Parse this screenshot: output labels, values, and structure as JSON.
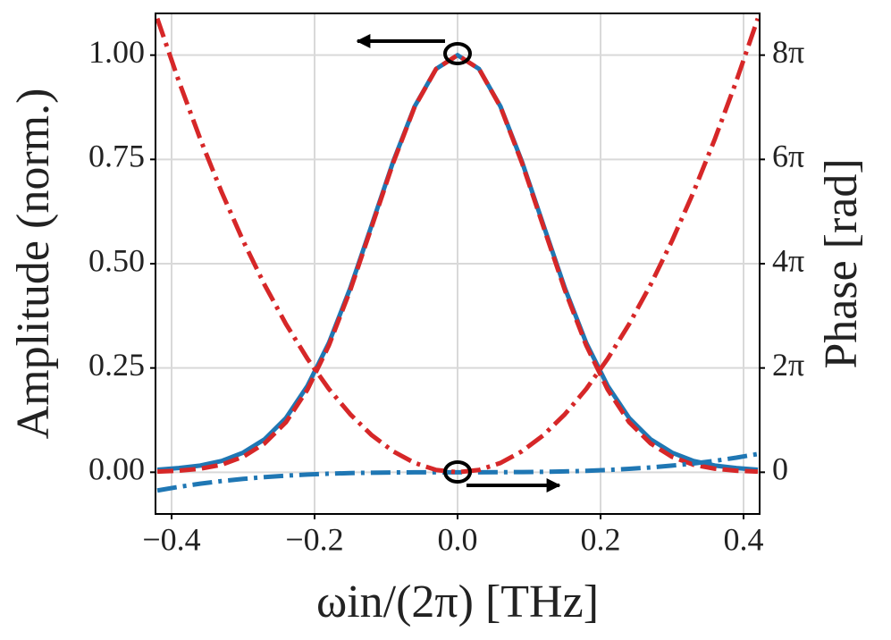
{
  "chart_data": {
    "type": "line",
    "xlabel": "ωin/(2π) [THz]",
    "ylabel": "Amplitude (norm.)",
    "y2label": "Phase [rad]",
    "x": [
      -0.42,
      -0.39,
      -0.36,
      -0.33,
      -0.3,
      -0.27,
      -0.24,
      -0.21,
      -0.18,
      -0.15,
      -0.12,
      -0.09,
      -0.06,
      -0.03,
      0,
      0.03,
      0.06,
      0.09,
      0.12,
      0.15,
      0.18,
      0.21,
      0.24,
      0.27,
      0.3,
      0.33,
      0.36,
      0.39,
      0.42
    ],
    "series": [
      {
        "color": "#1f77b4",
        "linestyle": "solid",
        "axis": "y",
        "values": [
          0.006,
          0.01,
          0.016,
          0.027,
          0.047,
          0.079,
          0.13,
          0.207,
          0.31,
          0.442,
          0.593,
          0.745,
          0.877,
          0.967,
          1,
          0.967,
          0.877,
          0.745,
          0.593,
          0.442,
          0.31,
          0.207,
          0.13,
          0.079,
          0.047,
          0.027,
          0.016,
          0.01,
          0.006
        ]
      },
      {
        "color": "#d62728",
        "linestyle": "dashed",
        "axis": "y",
        "values": [
          0.0015,
          0.0037,
          0.0085,
          0.018,
          0.037,
          0.069,
          0.12,
          0.198,
          0.304,
          0.437,
          0.589,
          0.742,
          0.876,
          0.967,
          1,
          0.967,
          0.876,
          0.742,
          0.589,
          0.437,
          0.304,
          0.198,
          0.12,
          0.069,
          0.037,
          0.018,
          0.0085,
          0.0037,
          0.0015
        ]
      },
      {
        "color": "#1f77b4",
        "linestyle": "dashdot",
        "axis": "y2",
        "values": [
          -1.1,
          -0.88,
          -0.69,
          -0.53,
          -0.4,
          -0.291,
          -0.205,
          -0.137,
          -0.086,
          -0.05,
          -0.026,
          -0.011,
          -0.003,
          0,
          0,
          0,
          0.003,
          0.011,
          0.026,
          0.05,
          0.086,
          0.137,
          0.205,
          0.291,
          0.4,
          0.53,
          0.69,
          0.88,
          1.1
        ]
      },
      {
        "color": "#d62728",
        "linestyle": "dashdot",
        "axis": "y2",
        "values": [
          27.34,
          23.58,
          20.09,
          16.88,
          13.95,
          11.3,
          8.93,
          6.84,
          5.02,
          3.49,
          2.23,
          1.26,
          0.56,
          0.14,
          0,
          0.14,
          0.56,
          1.26,
          2.23,
          3.49,
          5.02,
          6.84,
          8.93,
          11.3,
          13.95,
          16.88,
          20.09,
          23.58,
          27.34
        ]
      }
    ],
    "xlim": [
      -0.4225,
      0.4225
    ],
    "xticks": [
      {
        "value": -0.4,
        "label": "−0.4"
      },
      {
        "value": -0.2,
        "label": "−0.2"
      },
      {
        "value": 0,
        "label": "0.0"
      },
      {
        "value": 0.2,
        "label": "0.2"
      },
      {
        "value": 0.4,
        "label": "0.4"
      }
    ],
    "ylim": [
      -0.1,
      1.1
    ],
    "yticks": [
      {
        "value": 0,
        "label": "0.00"
      },
      {
        "value": 0.25,
        "label": "0.25"
      },
      {
        "value": 0.5,
        "label": "0.50"
      },
      {
        "value": 0.75,
        "label": "0.75"
      },
      {
        "value": 1,
        "label": "1.00"
      }
    ],
    "y2lim": [
      -2.513,
      27.646
    ],
    "y2ticks": [
      0,
      {
        "value": 6.283,
        "label": "2π"
      },
      {
        "value": 12.566,
        "label": "4π"
      },
      {
        "value": 18.85,
        "label": "6π"
      },
      {
        "value": 25.133,
        "label": "8π"
      }
    ],
    "grid": true
  }
}
